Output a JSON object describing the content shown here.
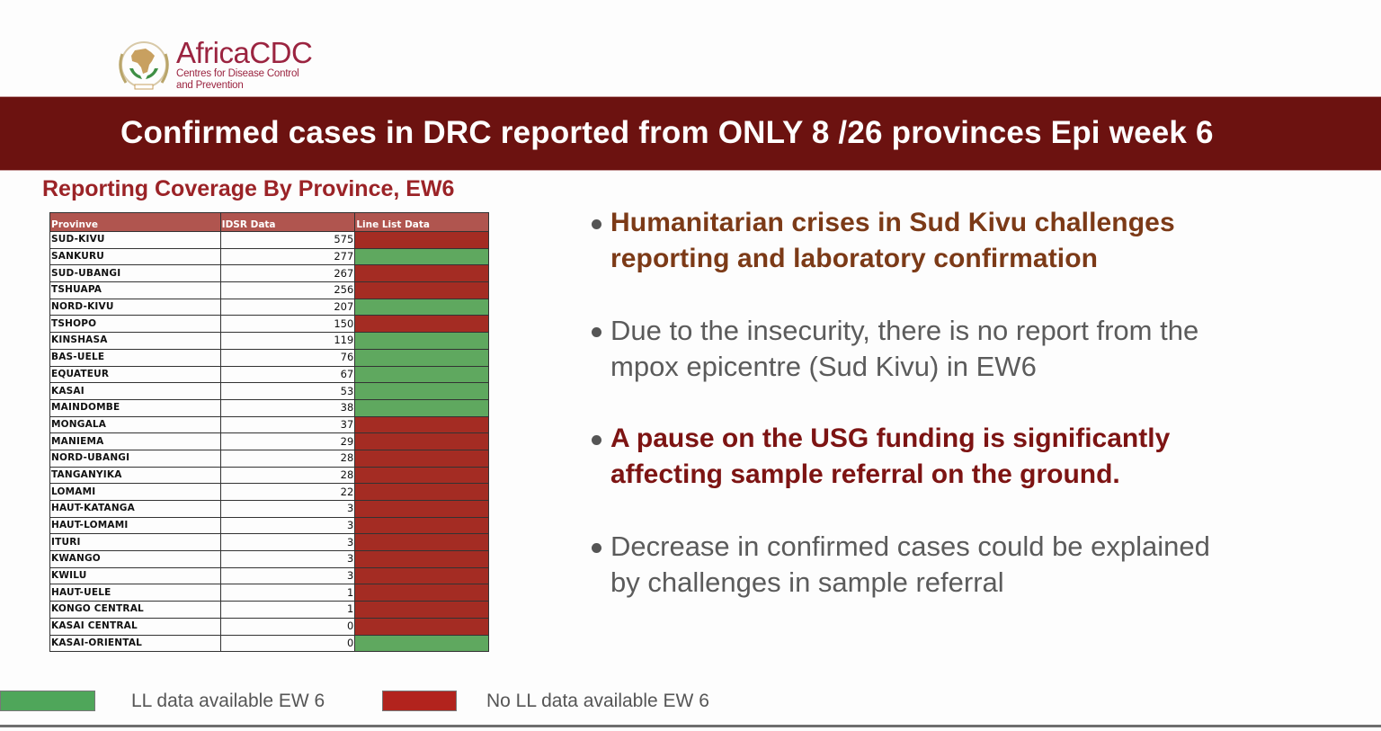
{
  "logo": {
    "title": "AfricaCDC",
    "subtitle_line1": "Centres for Disease Control",
    "subtitle_line2": "and Prevention",
    "colors": {
      "brand": "#9b2440",
      "emblem_gold": "#c8a060",
      "emblem_green": "#3f8f45"
    }
  },
  "banner": {
    "title": "Confirmed cases in DRC reported from ONLY 8 /26 provinces Epi week 6",
    "background": "#6c1210"
  },
  "table": {
    "title": "Reporting Coverage By Province, EW6",
    "headers": [
      "Provinve",
      "IDSR Data",
      "Line List Data"
    ],
    "rows": [
      {
        "province": "SUD-KIVU",
        "idsr": "575",
        "ll_status": "red"
      },
      {
        "province": "SANKURU",
        "idsr": "277",
        "ll_status": "green"
      },
      {
        "province": "SUD-UBANGI",
        "idsr": "267",
        "ll_status": "red"
      },
      {
        "province": "TSHUAPA",
        "idsr": "256",
        "ll_status": "red"
      },
      {
        "province": "NORD-KIVU",
        "idsr": "207",
        "ll_status": "green"
      },
      {
        "province": "TSHOPO",
        "idsr": "150",
        "ll_status": "red"
      },
      {
        "province": "KINSHASA",
        "idsr": "119",
        "ll_status": "green"
      },
      {
        "province": "BAS-UELE",
        "idsr": "76",
        "ll_status": "green"
      },
      {
        "province": "EQUATEUR",
        "idsr": "67",
        "ll_status": "green"
      },
      {
        "province": "KASAI",
        "idsr": "53",
        "ll_status": "green"
      },
      {
        "province": "MAINDOMBE",
        "idsr": "38",
        "ll_status": "green"
      },
      {
        "province": "MONGALA",
        "idsr": "37",
        "ll_status": "red"
      },
      {
        "province": "MANIEMA",
        "idsr": "29",
        "ll_status": "red"
      },
      {
        "province": "NORD-UBANGI",
        "idsr": "28",
        "ll_status": "red"
      },
      {
        "province": "TANGANYIKA",
        "idsr": "28",
        "ll_status": "red"
      },
      {
        "province": "LOMAMI",
        "idsr": "22",
        "ll_status": "red"
      },
      {
        "province": "HAUT-KATANGA",
        "idsr": "3",
        "ll_status": "red"
      },
      {
        "province": "HAUT-LOMAMI",
        "idsr": "3",
        "ll_status": "red"
      },
      {
        "province": "ITURI",
        "idsr": "3",
        "ll_status": "red"
      },
      {
        "province": "KWANGO",
        "idsr": "3",
        "ll_status": "red"
      },
      {
        "province": "KWILU",
        "idsr": "3",
        "ll_status": "red"
      },
      {
        "province": "HAUT-UELE",
        "idsr": "1",
        "ll_status": "red"
      },
      {
        "province": "KONGO CENTRAL",
        "idsr": "1",
        "ll_status": "red"
      },
      {
        "province": "KASAI CENTRAL",
        "idsr": "0",
        "ll_status": "red"
      },
      {
        "province": "KASAI-ORIENTAL",
        "idsr": "0",
        "ll_status": "green"
      }
    ],
    "colors": {
      "header": "#b0554f",
      "green": "#5fa85f",
      "red": "#a42c23"
    }
  },
  "legend": {
    "items": [
      {
        "label": "LL data available EW 6",
        "color": "#4fa65a"
      },
      {
        "label": "No LL data available EW 6",
        "color": "#b2231d"
      }
    ]
  },
  "bullets": [
    {
      "line1": "Humanitarian crises in Sud Kivu challenges",
      "line2": "reporting and  laboratory confirmation",
      "style": "brown"
    },
    {
      "line1": "Due to the insecurity, there is no report from the",
      "line2": "mpox epicentre (Sud Kivu) in EW6",
      "style": "grey"
    },
    {
      "line1": "A pause on the USG funding is significantly",
      "line2": "affecting sample referral on the ground.",
      "style": "maroon"
    },
    {
      "line1": "Decrease in confirmed cases could be explained",
      "line2": "by challenges in sample referral",
      "style": "grey"
    }
  ]
}
